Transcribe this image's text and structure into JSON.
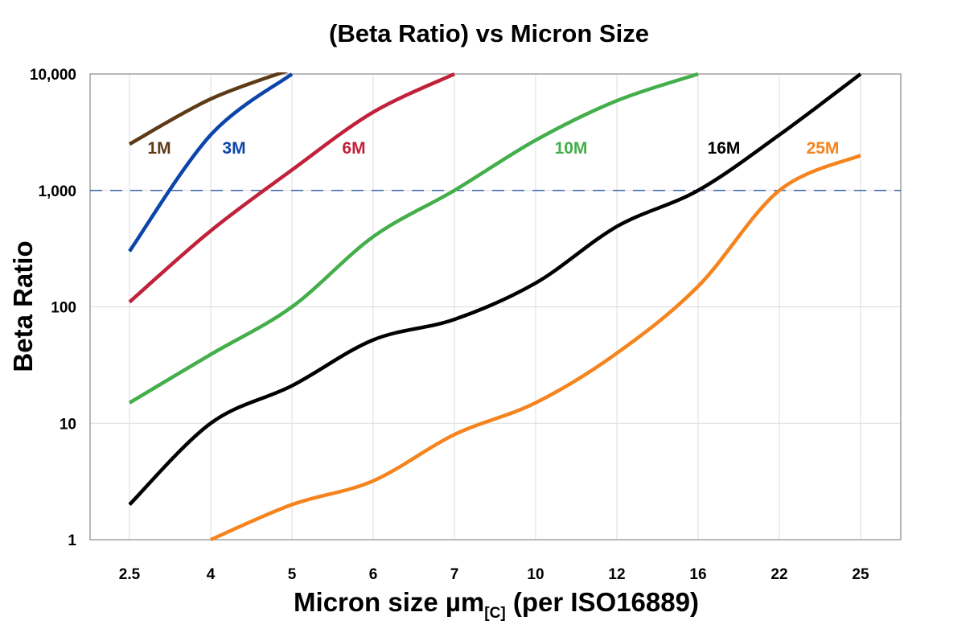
{
  "chart_data": {
    "type": "line",
    "title": "(Beta Ratio) vs Micron Size",
    "xlabel": {
      "main": "Micron size µm",
      "subscript": "[C]",
      "suffix": " (per ISO16889)"
    },
    "ylabel": "Beta Ratio",
    "y_scale": "log",
    "ylim": [
      1,
      10000
    ],
    "y_ticks": [
      "1",
      "10",
      "100",
      "1,000",
      "10,000"
    ],
    "y_tick_values": [
      1,
      10,
      100,
      1000,
      10000
    ],
    "categories": [
      "2.5",
      "4",
      "5",
      "6",
      "7",
      "10",
      "12",
      "16",
      "22",
      "25"
    ],
    "grid": true,
    "reference_line": {
      "value": 1000,
      "style": "dashed",
      "color": "#3a62a8"
    },
    "series": [
      {
        "name": "1M",
        "color": "#5e3a17",
        "values": [
          2500,
          6100,
          11000,
          null,
          null,
          null,
          null,
          null,
          null,
          null
        ]
      },
      {
        "name": "3M",
        "color": "#0b45a9",
        "values": [
          300,
          3000,
          10000,
          null,
          null,
          null,
          null,
          null,
          null,
          null
        ]
      },
      {
        "name": "6M",
        "color": "#c1213a",
        "values": [
          110,
          450,
          1500,
          4700,
          10000,
          null,
          null,
          null,
          null,
          null
        ]
      },
      {
        "name": "10M",
        "color": "#43ae4a",
        "values": [
          15,
          39,
          100,
          400,
          1000,
          2700,
          5900,
          10000,
          null,
          null
        ]
      },
      {
        "name": "16M",
        "color": "#000000",
        "values": [
          2,
          10,
          21,
          52,
          78,
          160,
          490,
          1000,
          3000,
          10000
        ]
      },
      {
        "name": "25M",
        "color": "#f5841f",
        "values": [
          null,
          1,
          2,
          3.2,
          8,
          15,
          40,
          150,
          1000,
          2000
        ]
      }
    ]
  }
}
